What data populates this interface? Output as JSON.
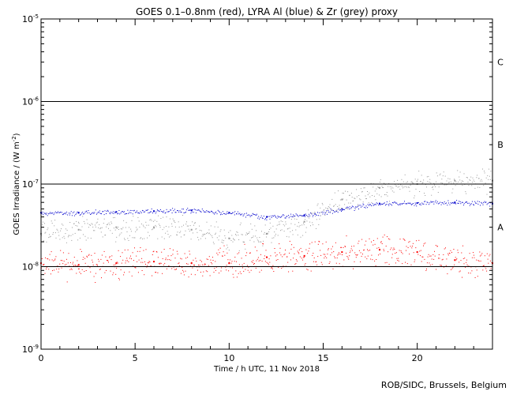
{
  "chart_data": {
    "type": "scatter",
    "title": "GOES 0.1–0.8nm (red), LYRA Al (blue) & Zr (grey) proxy",
    "xlabel": "Time / h UTC, 11 Nov 2018",
    "ylabel": "GOES Irradiance / (W m",
    "ylabel_exponent": "-2",
    "ylabel_suffix": ")",
    "xlim": [
      0,
      24
    ],
    "ylim": [
      1e-09,
      1e-05
    ],
    "yscale": "log",
    "x_ticks": [
      0,
      5,
      10,
      15,
      20
    ],
    "x_tick_labels": [
      "0",
      "5",
      "10",
      "15",
      "20"
    ],
    "y_ticks": [
      1e-09,
      1e-08,
      1e-07,
      1e-06,
      1e-05
    ],
    "y_tick_bases": [
      "10",
      "10",
      "10",
      "10",
      "10"
    ],
    "y_tick_exponents": [
      "-9",
      "-8",
      "-7",
      "-6",
      "-5"
    ],
    "flare_levels": [
      1e-08,
      1e-07,
      1e-06
    ],
    "flare_classes": [
      {
        "label": "A",
        "y": 3e-08
      },
      {
        "label": "B",
        "y": 3e-07
      },
      {
        "label": "C",
        "y": 3e-06
      }
    ],
    "series": [
      {
        "name": "GOES 0.1–0.8nm",
        "color": "#ff0000",
        "x": [
          0,
          2,
          4,
          6,
          8,
          10,
          12,
          14,
          16,
          18,
          20,
          22,
          24
        ],
        "values": [
          1.1e-08,
          1.05e-08,
          1.1e-08,
          1.15e-08,
          1.1e-08,
          1.1e-08,
          1.3e-08,
          1.35e-08,
          1.5e-08,
          1.6e-08,
          1.5e-08,
          1.2e-08,
          1.1e-08
        ]
      },
      {
        "name": "LYRA Al proxy",
        "color": "#0000cc",
        "x": [
          0,
          2,
          4,
          6,
          8,
          10,
          12,
          14,
          16,
          18,
          20,
          22,
          24
        ],
        "values": [
          4.5e-08,
          4.5e-08,
          4.6e-08,
          4.7e-08,
          4.8e-08,
          4.5e-08,
          4e-08,
          4.2e-08,
          5e-08,
          5.8e-08,
          5.9e-08,
          6e-08,
          5.8e-08
        ]
      },
      {
        "name": "LYRA Zr proxy",
        "color": "#999999",
        "x": [
          0,
          2,
          4,
          6,
          8,
          10,
          12,
          14,
          16,
          18,
          20,
          22,
          24
        ],
        "values": [
          2.5e-08,
          2.8e-08,
          3e-08,
          3e-08,
          2.8e-08,
          2.2e-08,
          2.5e-08,
          3.5e-08,
          6.5e-08,
          9e-08,
          1e-07,
          1.1e-07,
          1.1e-07
        ]
      }
    ],
    "grid": false,
    "credit": "ROB/SIDC, Brussels, Belgium"
  }
}
